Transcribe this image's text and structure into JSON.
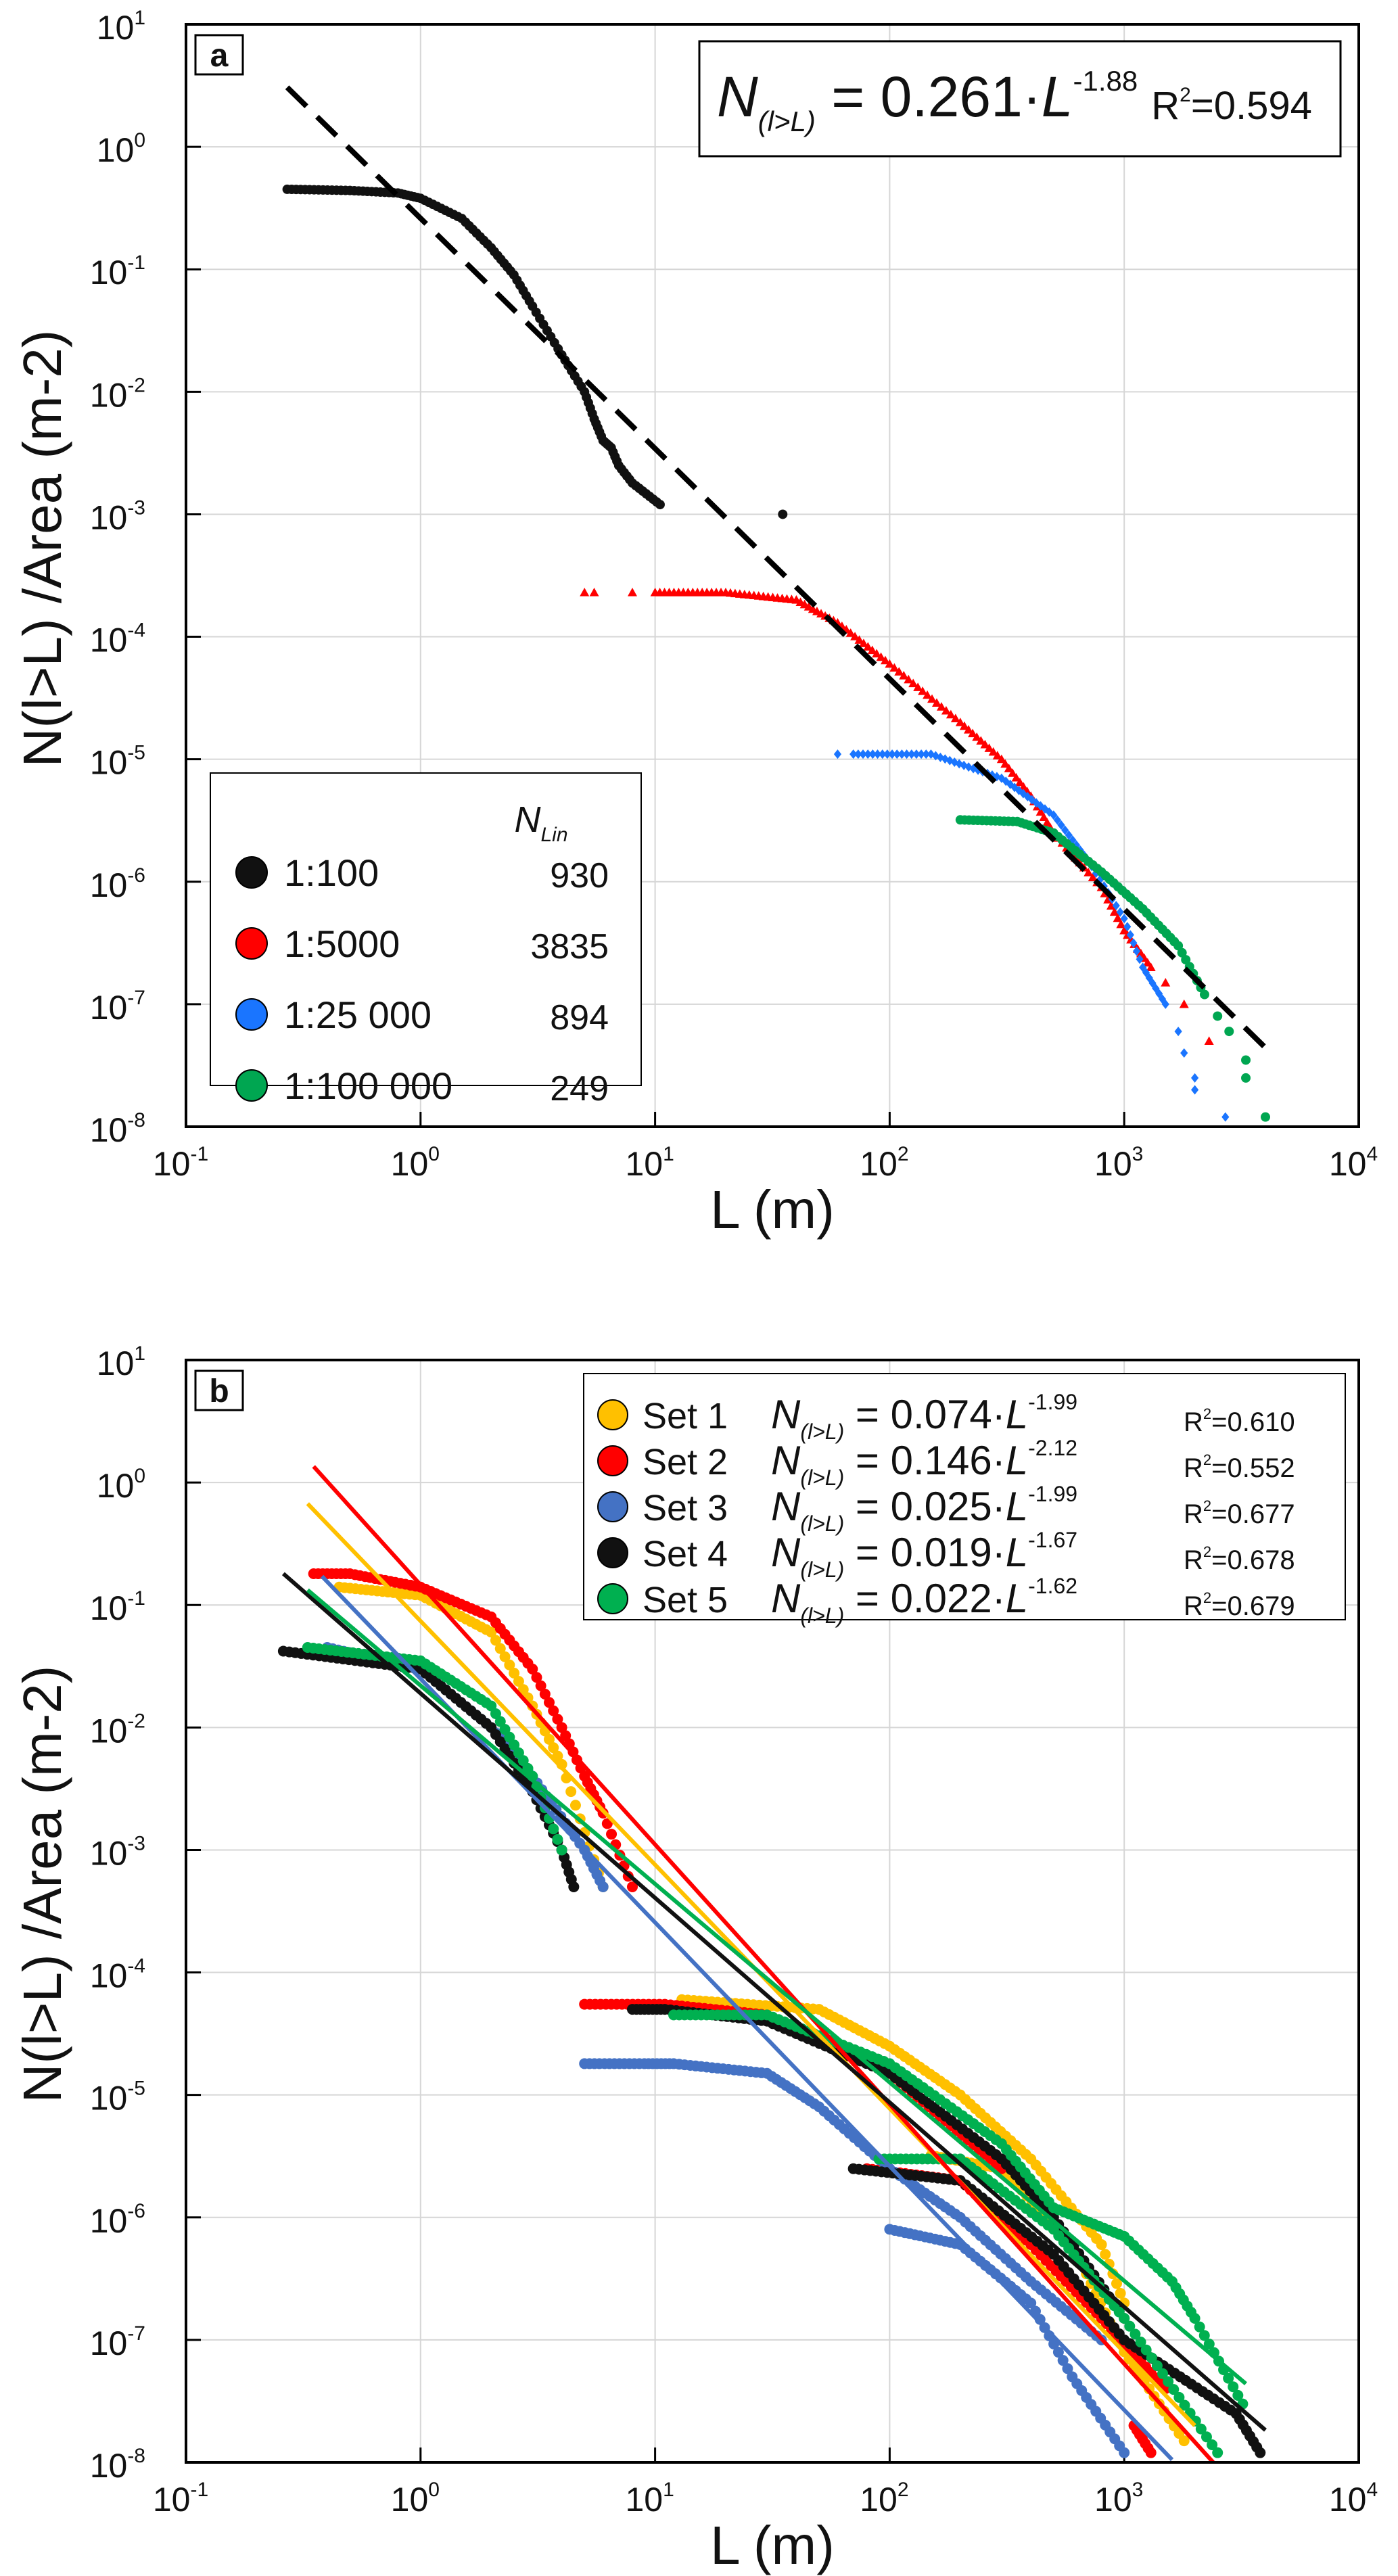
{
  "chart_data": [
    {
      "type": "scatter",
      "panel_label": "a",
      "xlabel": "L (m)",
      "ylabel": "N(l>L) /Area (m-2)",
      "xscale": "log",
      "yscale": "log",
      "xlim": [
        0.1,
        10000
      ],
      "ylim": [
        1e-08,
        10
      ],
      "x_ticks": [
        {
          "base": "10",
          "exp": "-1"
        },
        {
          "base": "10",
          "exp": "0"
        },
        {
          "base": "10",
          "exp": "1"
        },
        {
          "base": "10",
          "exp": "2"
        },
        {
          "base": "10",
          "exp": "3"
        },
        {
          "base": "10",
          "exp": "4"
        }
      ],
      "y_ticks": [
        {
          "base": "10",
          "exp": "1"
        },
        {
          "base": "10",
          "exp": "0"
        },
        {
          "base": "10",
          "exp": "-1"
        },
        {
          "base": "10",
          "exp": "-2"
        },
        {
          "base": "10",
          "exp": "-3"
        },
        {
          "base": "10",
          "exp": "-4"
        },
        {
          "base": "10",
          "exp": "-5"
        },
        {
          "base": "10",
          "exp": "-6"
        },
        {
          "base": "10",
          "exp": "-7"
        },
        {
          "base": "10",
          "exp": "-8"
        }
      ],
      "grid": true,
      "fit": {
        "eq_n": "N",
        "eq_sub": "(l>L)",
        "eq_mid": " = 0.261·",
        "eq_L": "L",
        "eq_exp": "-1.88",
        "r2_label": "R",
        "r2_value": "=0.594",
        "a": 0.261,
        "b": -1.88,
        "xrange": [
          0.27,
          4000
        ],
        "style": "dashed",
        "color": "#000000"
      },
      "legend": {
        "header": "N",
        "header_sub": "Lin",
        "placement": "bottom-left"
      },
      "series": [
        {
          "name": "1:100",
          "n": "930",
          "color": "#111111",
          "marker": "circle",
          "points": [
            [
              0.27,
              0.45
            ],
            [
              0.5,
              0.44
            ],
            [
              0.8,
              0.42
            ],
            [
              1,
              0.38
            ],
            [
              1.5,
              0.26
            ],
            [
              2,
              0.15
            ],
            [
              2.5,
              0.09
            ],
            [
              3,
              0.05
            ],
            [
              4,
              0.02
            ],
            [
              5,
              0.01
            ],
            [
              5.5,
              0.006
            ],
            [
              6,
              0.004
            ],
            [
              6.5,
              0.0035
            ],
            [
              7,
              0.0025
            ],
            [
              8,
              0.0018
            ],
            [
              10.5,
              0.0012
            ]
          ],
          "extra": [
            [
              35,
              0.001
            ]
          ]
        },
        {
          "name": "1:5000",
          "n": "3835",
          "color": "#ff0000",
          "marker": "triangle",
          "points": [
            [
              10,
              0.00023
            ],
            [
              20,
              0.00023
            ],
            [
              40,
              0.0002
            ],
            [
              60,
              0.00013
            ],
            [
              100,
              6e-05
            ],
            [
              200,
              2e-05
            ],
            [
              300,
              1e-05
            ],
            [
              400,
              5e-06
            ],
            [
              500,
              2.5e-06
            ],
            [
              800,
              9e-07
            ],
            [
              1000,
              4e-07
            ],
            [
              1300,
              2e-07
            ]
          ],
          "extra": [
            [
              5,
              0.00023
            ],
            [
              5.5,
              0.00023
            ],
            [
              8,
              0.00023
            ],
            [
              1500,
              1.5e-07
            ],
            [
              1800,
              1e-07
            ],
            [
              2300,
              5e-08
            ]
          ]
        },
        {
          "name": "1:25 000",
          "n": "894",
          "color": "#1a75ff",
          "marker": "diamond",
          "points": [
            [
              70,
              1.1e-05
            ],
            [
              150,
              1.1e-05
            ],
            [
              300,
              7e-06
            ],
            [
              500,
              3.5e-06
            ],
            [
              700,
              1.5e-06
            ],
            [
              1000,
              5e-07
            ],
            [
              1200,
              2e-07
            ],
            [
              1500,
              1e-07
            ]
          ],
          "extra": [
            [
              60,
              1.1e-05
            ],
            [
              1700,
              6e-08
            ],
            [
              1800,
              4e-08
            ],
            [
              2000,
              2.5e-08
            ],
            [
              2000,
              2e-08
            ],
            [
              2700,
              1.2e-08
            ]
          ]
        },
        {
          "name": "1:100 000",
          "n": "249",
          "color": "#00a651",
          "marker": "circle",
          "points": [
            [
              200,
              3.2e-06
            ],
            [
              350,
              3.1e-06
            ],
            [
              500,
              2.5e-06
            ],
            [
              800,
              1.2e-06
            ],
            [
              1200,
              6e-07
            ],
            [
              1700,
              3e-07
            ],
            [
              2200,
              1.2e-07
            ]
          ],
          "extra": [
            [
              2500,
              8e-08
            ],
            [
              2800,
              6e-08
            ],
            [
              3300,
              3.5e-08
            ],
            [
              3300,
              2.5e-08
            ],
            [
              4000,
              1.2e-08
            ]
          ]
        }
      ]
    },
    {
      "type": "scatter",
      "panel_label": "b",
      "xlabel": "L (m)",
      "ylabel": "N(l>L) /Area (m-2)",
      "xscale": "log",
      "yscale": "log",
      "xlim": [
        0.1,
        10000
      ],
      "ylim": [
        1e-08,
        10
      ],
      "grid": true,
      "legend": {
        "placement": "top-right"
      },
      "series": [
        {
          "name": "Set 1",
          "color": "#ffc000",
          "eq_n": "N",
          "eq_sub": "(l>L)",
          "eq_mid": " = 0.074·",
          "eq_L": "L",
          "eq_exp": "-1.99",
          "r2_label": "R",
          "r2_value": "=0.610",
          "a": 0.074,
          "b": -1.99,
          "xrange": [
            0.33,
            2000
          ],
          "segments": [
            [
              [
                0.45,
                0.14
              ],
              [
                1,
                0.12
              ],
              [
                2,
                0.06
              ],
              [
                3,
                0.015
              ],
              [
                4,
                0.005
              ],
              [
                6,
                0.0005
              ]
            ],
            [
              [
                13,
                6e-05
              ],
              [
                50,
                5e-05
              ],
              [
                100,
                2.5e-05
              ],
              [
                200,
                1e-05
              ],
              [
                400,
                3e-06
              ],
              [
                800,
                6e-07
              ],
              [
                1000,
                2e-07
              ]
            ],
            [
              [
                150,
                3.2e-06
              ],
              [
                300,
                2.5e-06
              ],
              [
                600,
                6e-07
              ],
              [
                1000,
                8e-08
              ],
              [
                1800,
                1.5e-08
              ]
            ]
          ]
        },
        {
          "name": "Set 2",
          "color": "#ff0000",
          "eq_n": "N",
          "eq_sub": "(l>L)",
          "eq_mid": " = 0.146·",
          "eq_L": "L",
          "eq_exp": "-2.12",
          "r2_label": "R",
          "r2_value": "=0.552",
          "a": 0.146,
          "b": -2.12,
          "xrange": [
            0.35,
            2400
          ],
          "segments": [
            [
              [
                0.35,
                0.18
              ],
              [
                0.5,
                0.18
              ],
              [
                1,
                0.14
              ],
              [
                2,
                0.08
              ],
              [
                3,
                0.03
              ],
              [
                4,
                0.01
              ],
              [
                5,
                0.004
              ],
              [
                6,
                0.002
              ],
              [
                8,
                0.0005
              ]
            ],
            [
              [
                5,
                5.5e-05
              ],
              [
                11,
                5.5e-05
              ],
              [
                30,
                4.5e-05
              ],
              [
                100,
                1.5e-05
              ],
              [
                300,
                2.5e-06
              ]
            ],
            [
              [
                80,
                2.5e-06
              ],
              [
                200,
                2e-06
              ],
              [
                400,
                6e-07
              ],
              [
                800,
                1.5e-07
              ],
              [
                1500,
                4e-08
              ]
            ],
            [
              [
                1100,
                2e-08
              ],
              [
                1300,
                1.2e-08
              ]
            ]
          ]
        },
        {
          "name": "Set 3",
          "color": "#4472c4",
          "eq_n": "N",
          "eq_sub": "(l>L)",
          "eq_mid": " = 0.025·",
          "eq_L": "L",
          "eq_exp": "-1.99",
          "r2_label": "R",
          "r2_value": "=0.677",
          "a": 0.025,
          "b": -1.99,
          "xrange": [
            0.38,
            1600
          ],
          "segments": [
            [
              [
                0.4,
                0.045
              ],
              [
                1,
                0.03
              ],
              [
                2,
                0.01
              ],
              [
                3,
                0.004
              ],
              [
                5,
                0.001
              ],
              [
                6,
                0.0005
              ]
            ],
            [
              [
                5,
                1.8e-05
              ],
              [
                9,
                1.8e-05
              ],
              [
                12,
                1.8e-05
              ],
              [
                30,
                1.5e-05
              ],
              [
                50,
                8e-06
              ],
              [
                100,
                2.5e-06
              ],
              [
                200,
                1e-06
              ],
              [
                400,
                3e-07
              ],
              [
                800,
                1e-07
              ]
            ],
            [
              [
                100,
                8e-07
              ],
              [
                200,
                6e-07
              ],
              [
                400,
                2e-07
              ],
              [
                600,
                5e-08
              ],
              [
                1000,
                1.2e-08
              ]
            ]
          ]
        },
        {
          "name": "Set 4",
          "color": "#111111",
          "eq_n": "N",
          "eq_sub": "(l>L)",
          "eq_mid": " = 0.019·",
          "eq_L": "L",
          "eq_exp": "-1.67",
          "r2_label": "R",
          "r2_value": "=0.678",
          "a": 0.019,
          "b": -1.67,
          "xrange": [
            0.26,
            4000
          ],
          "segments": [
            [
              [
                0.26,
                0.042
              ],
              [
                1,
                0.03
              ],
              [
                2,
                0.01
              ],
              [
                3,
                0.003
              ],
              [
                4,
                0.001
              ],
              [
                4.5,
                0.0005
              ]
            ],
            [
              [
                8,
                5e-05
              ],
              [
                11,
                5e-05
              ],
              [
                30,
                4e-05
              ],
              [
                100,
                1.5e-05
              ],
              [
                300,
                3e-06
              ],
              [
                500,
                1e-06
              ],
              [
                1000,
                1.5e-07
              ]
            ],
            [
              [
                70,
                2.5e-06
              ],
              [
                200,
                2e-06
              ],
              [
                500,
                5e-07
              ],
              [
                1000,
                1e-07
              ],
              [
                3000,
                2.5e-08
              ],
              [
                3800,
                1.2e-08
              ]
            ]
          ]
        },
        {
          "name": "Set 5",
          "color": "#00b050",
          "eq_n": "N",
          "eq_sub": "(l>L)",
          "eq_mid": " = 0.022·",
          "eq_L": "L",
          "eq_exp": "-1.62",
          "r2_label": "R",
          "r2_value": "=0.679",
          "a": 0.022,
          "b": -1.62,
          "xrange": [
            0.33,
            3300
          ],
          "segments": [
            [
              [
                0.33,
                0.045
              ],
              [
                1,
                0.035
              ],
              [
                2,
                0.015
              ],
              [
                3,
                0.004
              ],
              [
                4,
                0.001
              ]
            ],
            [
              [
                12,
                4.5e-05
              ],
              [
                30,
                4.5e-05
              ],
              [
                100,
                1.8e-05
              ],
              [
                300,
                4e-06
              ],
              [
                500,
                1.2e-06
              ],
              [
                1000,
                7e-07
              ],
              [
                1600,
                3e-07
              ],
              [
                2000,
                1.5e-07
              ],
              [
                3200,
                3e-08
              ]
            ],
            [
              [
                90,
                3e-06
              ],
              [
                200,
                3e-06
              ],
              [
                500,
                8e-07
              ],
              [
                1000,
                1.5e-07
              ],
              [
                2500,
                1.2e-08
              ]
            ]
          ]
        }
      ]
    }
  ]
}
